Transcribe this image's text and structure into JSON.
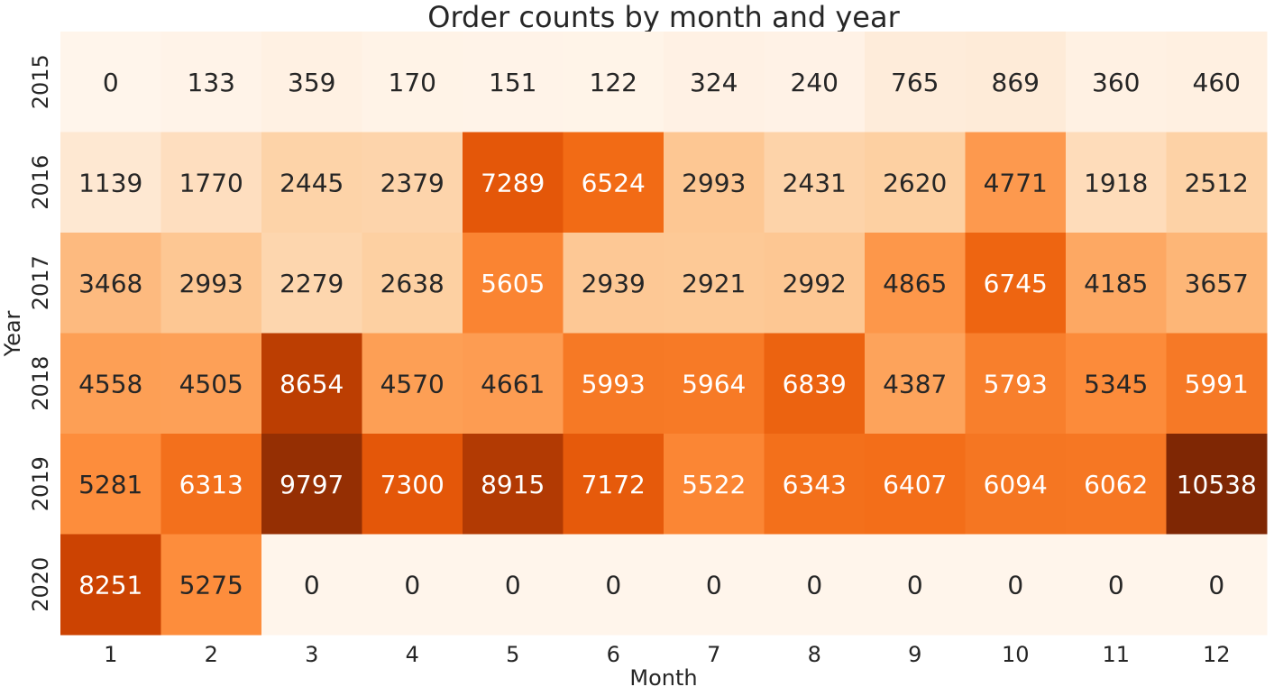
{
  "chart_data": {
    "type": "heatmap",
    "title": "Order counts by month and year",
    "xlabel": "Month",
    "ylabel": "Year",
    "x_categories": [
      "1",
      "2",
      "3",
      "4",
      "5",
      "6",
      "7",
      "8",
      "9",
      "10",
      "11",
      "12"
    ],
    "y_categories": [
      "2015",
      "2016",
      "2017",
      "2018",
      "2019",
      "2020"
    ],
    "values": [
      [
        0,
        133,
        359,
        170,
        151,
        122,
        324,
        240,
        765,
        869,
        360,
        460
      ],
      [
        1139,
        1770,
        2445,
        2379,
        7289,
        6524,
        2993,
        2431,
        2620,
        4771,
        1918,
        2512
      ],
      [
        3468,
        2993,
        2279,
        2638,
        5605,
        2939,
        2921,
        2992,
        4865,
        6745,
        4185,
        3657
      ],
      [
        4558,
        4505,
        8654,
        4570,
        4661,
        5993,
        5964,
        6839,
        4387,
        5793,
        5345,
        5991
      ],
      [
        5281,
        6313,
        9797,
        7300,
        8915,
        7172,
        5522,
        6343,
        6407,
        6094,
        6062,
        10538
      ],
      [
        8251,
        5275,
        0,
        0,
        0,
        0,
        0,
        0,
        0,
        0,
        0,
        0
      ]
    ],
    "colormap": "Oranges",
    "annotate": true,
    "colorbar": false,
    "grid": false
  }
}
